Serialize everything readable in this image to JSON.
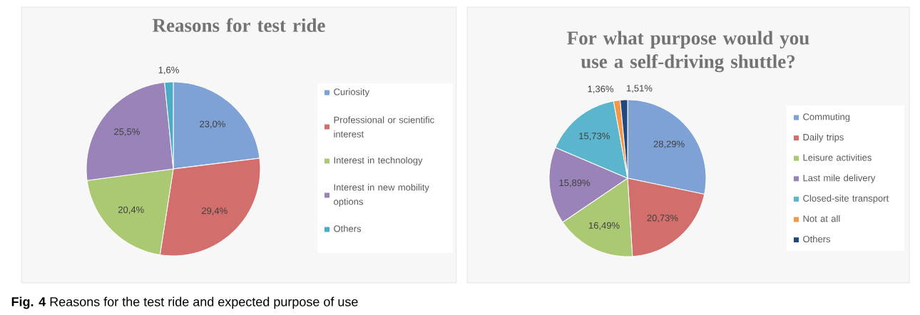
{
  "chart_data": [
    {
      "type": "pie",
      "title": "Reasons for test ride",
      "categories": [
        "Curiosity",
        "Professional or scientific interest",
        "Interest in technology",
        "Interest in new mobility options",
        "Others"
      ],
      "values": [
        23.0,
        29.4,
        20.4,
        25.5,
        1.6
      ],
      "colors": [
        "#7ea1d6",
        "#d26e6b",
        "#abc873",
        "#9a83b8",
        "#4bacc6"
      ],
      "value_labels": [
        "23,0%",
        "29,4%",
        "20,4%",
        "25,5%",
        "1,6%"
      ],
      "legend": "right",
      "annotations": [
        "**Fig. 4** Reasons for the test ride and expected purpose of use"
      ]
    },
    {
      "type": "pie",
      "title": "For what purpose would you use a self-driving shuttle?",
      "categories": [
        "Commuting",
        "Daily trips",
        "Leisure activities",
        "Last mile delivery",
        "Closed-site transport",
        "Not at all",
        "Others"
      ],
      "values": [
        28.29,
        20.73,
        16.49,
        15.89,
        15.73,
        1.36,
        1.51
      ],
      "colors": [
        "#7ea1d6",
        "#d26e6b",
        "#abc873",
        "#9a83b8",
        "#5bb5cc",
        "#f79646",
        "#1f497d"
      ],
      "value_labels": [
        "28,29%",
        "20,73%",
        "16,49%",
        "15,89%",
        "15,73%",
        "1,36%",
        "1,51%"
      ],
      "legend": "right"
    }
  ]
}
